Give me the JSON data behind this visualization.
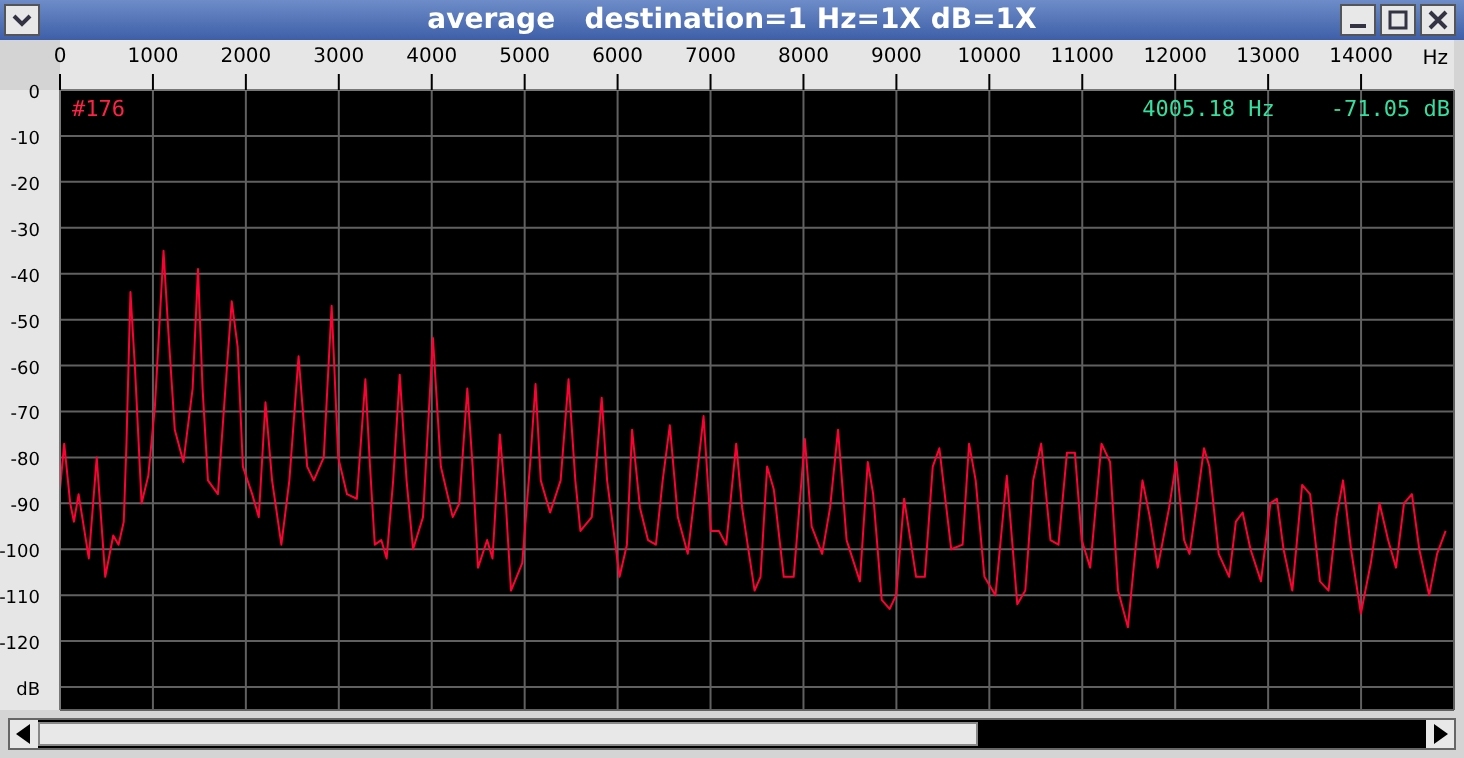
{
  "chart_data": {
    "type": "line",
    "title": "average   destination=1 Hz=1X dB=1X",
    "xlabel": "Hz",
    "x": [
      0,
      45,
      110,
      150,
      200,
      310,
      395,
      487,
      573,
      630,
      686,
      715,
      758,
      808,
      878,
      950,
      1021,
      1114,
      1164,
      1235,
      1328,
      1427,
      1485,
      1534,
      1592,
      1699,
      1769,
      1848,
      1912,
      1968,
      2068,
      2139,
      2211,
      2282,
      2382,
      2468,
      2567,
      2660,
      2731,
      2838,
      2923,
      2994,
      3088,
      3194,
      3286,
      3336,
      3387,
      3457,
      3515,
      3585,
      3656,
      3729,
      3799,
      3906,
      4013,
      4098,
      4226,
      4297,
      4383,
      4440,
      4498,
      4596,
      4654,
      4733,
      4797,
      4853,
      4974,
      5060,
      5117,
      5173,
      5274,
      5387,
      5472,
      5545,
      5600,
      5722,
      5829,
      5887,
      6021,
      6100,
      6156,
      6241,
      6327,
      6412,
      6485,
      6562,
      6648,
      6755,
      6848,
      6925,
      7004,
      7090,
      7169,
      7276,
      7340,
      7474,
      7538,
      7609,
      7681,
      7788,
      7895,
      8015,
      8088,
      8201,
      8286,
      8372,
      8464,
      8607,
      8692,
      8750,
      8842,
      8927,
      8998,
      9083,
      9212,
      9306,
      9391,
      9462,
      9590,
      9712,
      9782,
      9853,
      9947,
      10066,
      10188,
      10301,
      10387,
      10472,
      10558,
      10658,
      10744,
      10835,
      10921,
      10994,
      11085,
      11207,
      11299,
      11385,
      11491,
      11563,
      11648,
      11727,
      11812,
      11934,
      12011,
      12096,
      12154,
      12225,
      12310,
      12368,
      12468,
      12581,
      12653,
      12726,
      12810,
      12923,
      13024,
      13094,
      13166,
      13260,
      13366,
      13451,
      13558,
      13650,
      13736,
      13806,
      13892,
      13998,
      14105,
      14199,
      14291,
      14376,
      14462,
      14547,
      14626,
      14733,
      14818,
      14910
    ],
    "series": [
      {
        "color": "#ff0033",
        "values": [
          -87,
          -77,
          -90,
          -94,
          -88,
          -102,
          -80,
          -106,
          -97,
          -99,
          -94,
          -77,
          -44,
          -61,
          -90,
          -84,
          -69,
          -35,
          -52,
          -74,
          -81,
          -65,
          -39,
          -65,
          -85,
          -88,
          -68,
          -46,
          -56,
          -82,
          -88,
          -93,
          -68,
          -85,
          -99,
          -85,
          -58,
          -82,
          -85,
          -80,
          -47,
          -80,
          -88,
          -89,
          -63,
          -82,
          -99,
          -98,
          -102,
          -85,
          -62,
          -85,
          -100,
          -93,
          -54,
          -82,
          -93,
          -90,
          -65,
          -82,
          -104,
          -98,
          -102,
          -75,
          -90,
          -109,
          -103,
          -81,
          -64,
          -85,
          -92,
          -85,
          -63,
          -85,
          -96,
          -93,
          -67,
          -85,
          -106,
          -99,
          -74,
          -91,
          -98,
          -99,
          -85,
          -73,
          -93,
          -101,
          -85,
          -71,
          -96,
          -96,
          -99,
          -77,
          -91,
          -109,
          -106,
          -82,
          -87,
          -106,
          -106,
          -76,
          -95,
          -101,
          -91,
          -74,
          -98,
          -107,
          -81,
          -88,
          -111,
          -113,
          -110,
          -89,
          -106,
          -106,
          -82,
          -78,
          -100,
          -99,
          -77,
          -85,
          -106,
          -110,
          -84,
          -112,
          -109,
          -85,
          -77,
          -98,
          -99,
          -79,
          -79,
          -98,
          -104,
          -77,
          -81,
          -109,
          -117,
          -102,
          -85,
          -93,
          -104,
          -91,
          -81,
          -98,
          -101,
          -91,
          -78,
          -82,
          -101,
          -106,
          -94,
          -92,
          -100,
          -107,
          -90,
          -89,
          -100,
          -109,
          -86,
          -88,
          -107,
          -109,
          -93,
          -85,
          -100,
          -114,
          -103,
          -90,
          -98,
          -104,
          -90,
          -88,
          -100,
          -110,
          -101,
          -96
        ]
      }
    ],
    "xlim": [
      0,
      15000
    ],
    "xticks": [
      0,
      1000,
      2000,
      3000,
      4000,
      5000,
      6000,
      7000,
      8000,
      9000,
      10000,
      11000,
      12000,
      13000,
      14000
    ],
    "ylim": [
      -135,
      0
    ],
    "yticks": [
      0,
      -10,
      -20,
      -30,
      -40,
      -50,
      -60,
      -70,
      -80,
      -90,
      -100,
      -110,
      -120,
      {
        "value": -130,
        "label": "dB"
      }
    ],
    "grid": true,
    "line_style": "solid",
    "annotations": [
      "#176",
      "4005.18 Hz",
      "-71.05 dB"
    ]
  }
}
